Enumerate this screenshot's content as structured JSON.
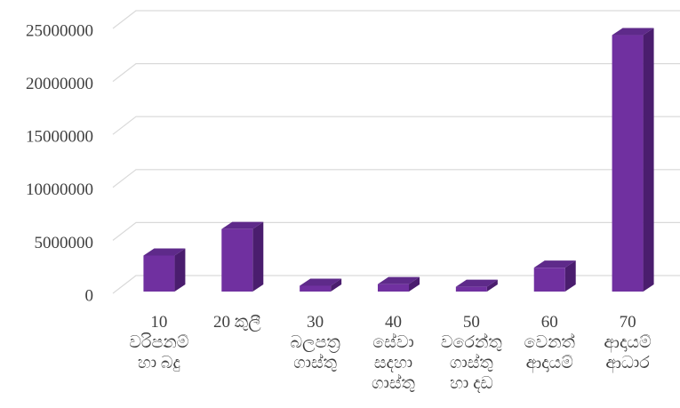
{
  "chart_data": {
    "type": "bar3d",
    "categories": [
      "10\nවරිපනම්\nහා බදු",
      "20 කුලී",
      "30\nබලපත්‍ර\nගාස්තු",
      "40\nසේවා\nසදහා\nගාස්තු",
      "50\nවරෙන්තු\nගාස්තු\nහා දඩ",
      "60\nවෙනත්\nආදායම්",
      "70\nආදායම්\nආධාර"
    ],
    "values": [
      3400000,
      5900000,
      550000,
      700000,
      450000,
      2250000,
      24200000
    ],
    "color": "#7030a0",
    "ylim": [
      0,
      25000000
    ],
    "yticks": [
      0,
      5000000,
      10000000,
      15000000,
      20000000,
      25000000
    ],
    "grid": true
  }
}
